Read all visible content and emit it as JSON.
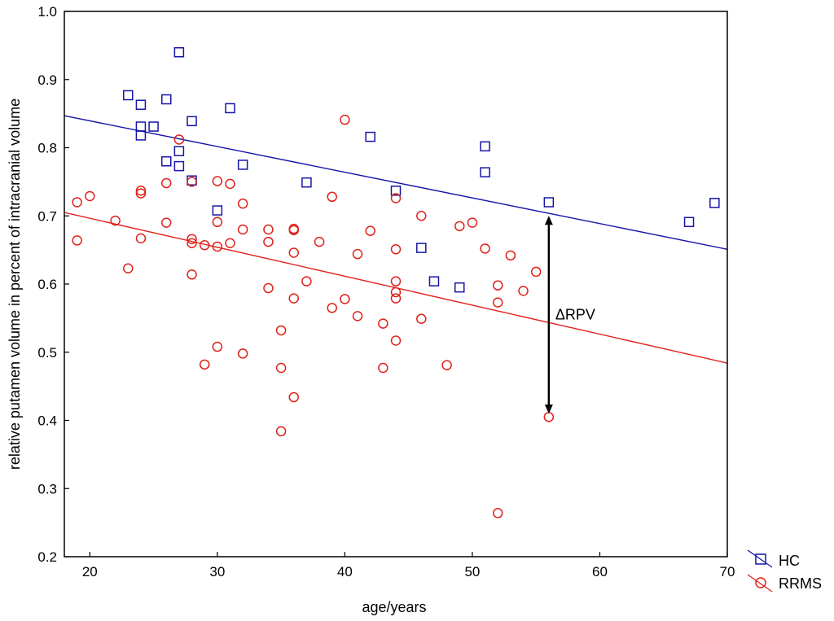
{
  "chart_data": {
    "type": "scatter",
    "title": "",
    "xlabel": "age/years",
    "ylabel": "relative putamen volume in percent of intracranial volume",
    "xlim": [
      18,
      70
    ],
    "ylim": [
      0.2,
      1.0
    ],
    "xticks": [
      20,
      30,
      40,
      50,
      60,
      70
    ],
    "yticks": [
      0.2,
      0.3,
      0.4,
      0.5,
      0.6,
      0.7,
      0.8,
      0.9,
      1.0
    ],
    "xtick_labels": [
      "20",
      "30",
      "40",
      "50",
      "60",
      "70"
    ],
    "ytick_labels": [
      "0.2",
      "0.3",
      "0.4",
      "0.5",
      "0.6",
      "0.7",
      "0.8",
      "0.9",
      "1.0"
    ],
    "grid": false,
    "legend_position": "outside-bottom-right",
    "annotation": {
      "label": "ΔRPV",
      "x": 56,
      "y_from": 0.41,
      "y_to": 0.7
    },
    "series": [
      {
        "name": "HC",
        "marker": "square",
        "color": "#1515a8",
        "points": [
          [
            23,
            0.877
          ],
          [
            24,
            0.863
          ],
          [
            24,
            0.831
          ],
          [
            24,
            0.818
          ],
          [
            25,
            0.831
          ],
          [
            26,
            0.871
          ],
          [
            26,
            0.78
          ],
          [
            27,
            0.94
          ],
          [
            27,
            0.795
          ],
          [
            27,
            0.773
          ],
          [
            28,
            0.839
          ],
          [
            28,
            0.752
          ],
          [
            30,
            0.708
          ],
          [
            31,
            0.858
          ],
          [
            32,
            0.775
          ],
          [
            37,
            0.749
          ],
          [
            42,
            0.816
          ],
          [
            44,
            0.737
          ],
          [
            46,
            0.653
          ],
          [
            47,
            0.604
          ],
          [
            49,
            0.595
          ],
          [
            51,
            0.802
          ],
          [
            51,
            0.764
          ],
          [
            56,
            0.72
          ],
          [
            67,
            0.691
          ],
          [
            69,
            0.719
          ]
        ],
        "fit_line": {
          "x": [
            18,
            70
          ],
          "y": [
            0.847,
            0.651
          ]
        }
      },
      {
        "name": "RRMS",
        "marker": "circle",
        "color": "#e0211b",
        "points": [
          [
            19,
            0.72
          ],
          [
            19,
            0.664
          ],
          [
            20,
            0.729
          ],
          [
            22,
            0.693
          ],
          [
            23,
            0.623
          ],
          [
            24,
            0.737
          ],
          [
            24,
            0.733
          ],
          [
            24,
            0.667
          ],
          [
            26,
            0.748
          ],
          [
            26,
            0.69
          ],
          [
            27,
            0.812
          ],
          [
            28,
            0.75
          ],
          [
            28,
            0.666
          ],
          [
            28,
            0.66
          ],
          [
            28,
            0.614
          ],
          [
            29,
            0.657
          ],
          [
            29,
            0.482
          ],
          [
            30,
            0.751
          ],
          [
            30,
            0.691
          ],
          [
            30,
            0.655
          ],
          [
            30,
            0.508
          ],
          [
            31,
            0.747
          ],
          [
            31,
            0.66
          ],
          [
            32,
            0.718
          ],
          [
            32,
            0.68
          ],
          [
            32,
            0.498
          ],
          [
            34,
            0.68
          ],
          [
            34,
            0.662
          ],
          [
            34,
            0.594
          ],
          [
            35,
            0.532
          ],
          [
            35,
            0.477
          ],
          [
            35,
            0.384
          ],
          [
            36,
            0.681
          ],
          [
            36,
            0.679
          ],
          [
            36,
            0.646
          ],
          [
            36,
            0.579
          ],
          [
            36,
            0.434
          ],
          [
            37,
            0.604
          ],
          [
            38,
            0.662
          ],
          [
            39,
            0.728
          ],
          [
            39,
            0.565
          ],
          [
            40,
            0.841
          ],
          [
            40,
            0.578
          ],
          [
            41,
            0.644
          ],
          [
            41,
            0.553
          ],
          [
            42,
            0.678
          ],
          [
            43,
            0.542
          ],
          [
            43,
            0.477
          ],
          [
            44,
            0.726
          ],
          [
            44,
            0.651
          ],
          [
            44,
            0.604
          ],
          [
            44,
            0.588
          ],
          [
            44,
            0.579
          ],
          [
            44,
            0.517
          ],
          [
            46,
            0.7
          ],
          [
            46,
            0.549
          ],
          [
            48,
            0.481
          ],
          [
            49,
            0.685
          ],
          [
            50,
            0.69
          ],
          [
            51,
            0.652
          ],
          [
            52,
            0.598
          ],
          [
            52,
            0.573
          ],
          [
            52,
            0.264
          ],
          [
            53,
            0.642
          ],
          [
            54,
            0.59
          ],
          [
            55,
            0.618
          ],
          [
            56,
            0.405
          ]
        ],
        "fit_line": {
          "x": [
            18,
            70
          ],
          "y": [
            0.705,
            0.484
          ]
        }
      }
    ]
  }
}
